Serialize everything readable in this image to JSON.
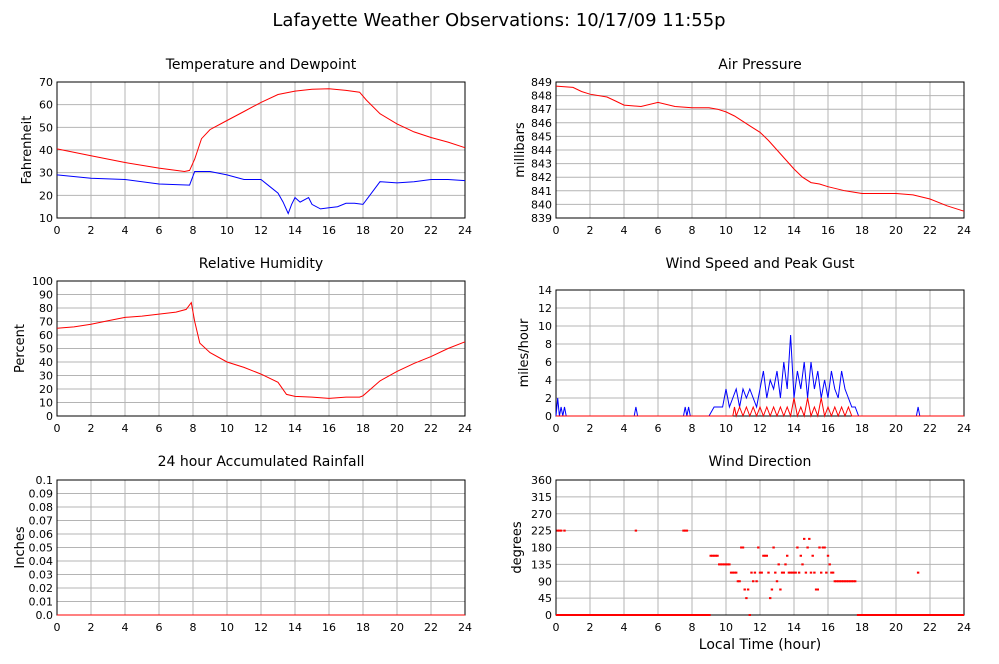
{
  "page": {
    "title": "Lafayette Weather Observations: 10/17/09 11:55p",
    "x_axis_label": "Local Time (hour)"
  },
  "colors": {
    "red": "#ff0000",
    "blue": "#0000ff",
    "grid": "#b4b4b4",
    "frame": "#000000"
  },
  "chart_data": [
    {
      "id": "temp",
      "type": "line",
      "title": "Temperature and Dewpoint",
      "xlabel": "",
      "ylabel": "Fahrenheit",
      "xlim": [
        0,
        24
      ],
      "ylim": [
        10,
        70
      ],
      "xticks": [
        0,
        2,
        4,
        6,
        8,
        10,
        12,
        14,
        16,
        18,
        20,
        22,
        24
      ],
      "yticks": [
        10,
        20,
        30,
        40,
        50,
        60,
        70
      ],
      "grid": true,
      "series": [
        {
          "color": "#ff0000",
          "x": [
            0,
            2,
            4,
            6,
            7.5,
            7.8,
            8.1,
            8.5,
            9,
            10,
            11,
            12,
            13,
            14,
            15,
            16,
            17,
            17.8,
            18.2,
            19,
            20,
            21,
            22,
            23,
            24
          ],
          "values": [
            40.5,
            37.5,
            34.5,
            32,
            30.5,
            31,
            36,
            45,
            49,
            53,
            57,
            61,
            64.5,
            66,
            66.8,
            67,
            66.3,
            65.5,
            62,
            56,
            51.5,
            48,
            45.5,
            43.5,
            41
          ]
        },
        {
          "color": "#0000ff",
          "x": [
            0,
            2,
            4,
            6,
            7.8,
            8.1,
            9,
            10,
            11,
            12,
            12.5,
            13,
            13.3,
            13.6,
            13.8,
            14,
            14.3,
            14.8,
            15,
            15.5,
            16,
            16.5,
            17,
            17.5,
            18,
            18.5,
            19,
            20,
            21,
            22,
            23,
            24
          ],
          "values": [
            29,
            27.5,
            27,
            25,
            24.5,
            30.5,
            30.5,
            29,
            27,
            27,
            24,
            21,
            17,
            12,
            16,
            19,
            17,
            19,
            16,
            14,
            14.5,
            15,
            16.5,
            16.5,
            16,
            21,
            26,
            25.5,
            26,
            27,
            27,
            26.5
          ]
        }
      ]
    },
    {
      "id": "pressure",
      "type": "line",
      "title": "Air Pressure",
      "xlabel": "",
      "ylabel": "millibars",
      "xlim": [
        0,
        24
      ],
      "ylim": [
        839,
        849
      ],
      "xticks": [
        0,
        2,
        4,
        6,
        8,
        10,
        12,
        14,
        16,
        18,
        20,
        22,
        24
      ],
      "yticks": [
        839,
        840,
        841,
        842,
        843,
        844,
        845,
        846,
        847,
        848,
        849
      ],
      "grid": true,
      "series": [
        {
          "color": "#ff0000",
          "x": [
            0,
            1,
            1.5,
            2,
            3,
            3.5,
            4,
            5,
            6,
            7,
            8,
            9,
            9.5,
            10,
            10.5,
            11,
            11.5,
            12,
            12.5,
            13,
            13.5,
            14,
            14.5,
            15,
            15.5,
            16,
            17,
            18,
            19,
            20,
            21,
            22,
            23,
            24
          ],
          "values": [
            848.7,
            848.6,
            848.3,
            848.1,
            847.9,
            847.6,
            847.3,
            847.2,
            847.5,
            847.2,
            847.1,
            847.1,
            847,
            846.8,
            846.5,
            846.1,
            845.7,
            845.3,
            844.7,
            844,
            843.3,
            842.6,
            842,
            841.6,
            841.5,
            841.3,
            841,
            840.8,
            840.8,
            840.8,
            840.7,
            840.4,
            839.9,
            839.5
          ]
        }
      ]
    },
    {
      "id": "humidity",
      "type": "line",
      "title": "Relative Humidity",
      "xlabel": "",
      "ylabel": "Percent",
      "xlim": [
        0,
        24
      ],
      "ylim": [
        0,
        100
      ],
      "xticks": [
        0,
        2,
        4,
        6,
        8,
        10,
        12,
        14,
        16,
        18,
        20,
        22,
        24
      ],
      "yticks": [
        0,
        10,
        20,
        30,
        40,
        50,
        60,
        70,
        80,
        90,
        100
      ],
      "grid": true,
      "series": [
        {
          "color": "#ff0000",
          "x": [
            0,
            1,
            2,
            3,
            4,
            5,
            6,
            7,
            7.6,
            7.9,
            8.1,
            8.4,
            9,
            10,
            11,
            12,
            13,
            13.5,
            14,
            15,
            16,
            17,
            17.8,
            18,
            19,
            20,
            21,
            22,
            23,
            24
          ],
          "values": [
            65,
            66,
            68,
            70.5,
            73,
            74,
            75.5,
            77,
            79,
            84,
            70,
            54,
            47,
            40,
            36,
            31,
            25,
            16,
            14.5,
            14,
            13,
            14,
            14,
            15,
            26,
            33,
            39,
            44,
            50,
            55
          ]
        }
      ]
    },
    {
      "id": "wind",
      "type": "line",
      "title": "Wind Speed and Peak Gust",
      "xlabel": "",
      "ylabel": "miles/hour",
      "xlim": [
        0,
        24
      ],
      "ylim": [
        0,
        14
      ],
      "xticks": [
        0,
        2,
        4,
        6,
        8,
        10,
        12,
        14,
        16,
        18,
        20,
        22,
        24
      ],
      "yticks": [
        0,
        2,
        4,
        6,
        8,
        10,
        12,
        14
      ],
      "grid": true,
      "series": [
        {
          "color": "#0000ff",
          "x": [
            0,
            0.1,
            0.2,
            0.3,
            0.4,
            0.5,
            0.6,
            0.7,
            4.6,
            4.7,
            4.8,
            7.5,
            7.6,
            7.7,
            7.8,
            7.9,
            8,
            9,
            9.3,
            9.6,
            9.8,
            10,
            10.2,
            10.4,
            10.6,
            10.8,
            11,
            11.2,
            11.4,
            11.6,
            11.8,
            12,
            12.2,
            12.4,
            12.6,
            12.8,
            13,
            13.2,
            13.4,
            13.6,
            13.8,
            14,
            14.2,
            14.4,
            14.6,
            14.8,
            15,
            15.2,
            15.4,
            15.6,
            15.8,
            16,
            16.2,
            16.4,
            16.6,
            16.8,
            17,
            17.2,
            17.4,
            17.6,
            17.8,
            18,
            21.2,
            21.3,
            21.4,
            24
          ],
          "values": [
            0,
            2,
            0,
            1,
            0,
            1,
            0,
            0,
            0,
            1,
            0,
            0,
            1,
            0,
            1,
            0,
            0,
            0,
            1,
            1,
            1,
            3,
            1,
            2,
            3,
            1,
            3,
            2,
            3,
            2,
            1,
            3,
            5,
            2,
            4,
            3,
            5,
            2,
            6,
            3,
            9,
            2,
            5,
            3,
            6,
            2,
            6,
            3,
            5,
            2,
            4,
            2,
            5,
            3,
            2,
            5,
            3,
            2,
            1,
            1,
            0,
            0,
            0,
            1,
            0,
            0
          ]
        },
        {
          "color": "#ff0000",
          "x": [
            0,
            10.4,
            10.5,
            10.6,
            10.8,
            11,
            11.2,
            11.4,
            11.6,
            11.8,
            12,
            12.2,
            12.4,
            12.6,
            12.8,
            13,
            13.2,
            13.4,
            13.6,
            13.8,
            14,
            14.2,
            14.4,
            14.6,
            14.8,
            15,
            15.2,
            15.4,
            15.6,
            15.8,
            16,
            16.2,
            16.4,
            16.6,
            16.8,
            17,
            17.2,
            17.4,
            24
          ],
          "values": [
            0,
            0,
            1,
            0,
            1,
            0,
            1,
            0,
            1,
            0,
            1,
            0,
            1,
            0,
            1,
            0,
            1,
            0,
            1,
            0,
            2,
            0,
            1,
            0,
            2,
            0,
            1,
            0,
            2,
            0,
            1,
            0,
            1,
            0,
            1,
            0,
            1,
            0,
            0
          ]
        }
      ]
    },
    {
      "id": "rain",
      "type": "line",
      "title": "24 hour Accumulated Rainfall",
      "xlabel": "",
      "ylabel": "Inches",
      "xlim": [
        0,
        24
      ],
      "ylim": [
        0,
        0.1
      ],
      "xticks": [
        0,
        2,
        4,
        6,
        8,
        10,
        12,
        14,
        16,
        18,
        20,
        22,
        24
      ],
      "yticks": [
        "0.0",
        "0.01",
        "0.02",
        "0.03",
        "0.04",
        "0.05",
        "0.06",
        "0.07",
        "0.08",
        "0.09",
        "0.1"
      ],
      "grid": true,
      "series": [
        {
          "color": "#ff0000",
          "x": [
            0,
            24
          ],
          "values": [
            0,
            0
          ]
        }
      ]
    },
    {
      "id": "direction",
      "type": "scatter",
      "title": "Wind Direction",
      "xlabel": "Local Time (hour)",
      "ylabel": "degrees",
      "xlim": [
        0,
        24
      ],
      "ylim": [
        0,
        360
      ],
      "xticks": [
        0,
        2,
        4,
        6,
        8,
        10,
        12,
        14,
        16,
        18,
        20,
        22,
        24
      ],
      "yticks": [
        0,
        45,
        90,
        135,
        180,
        225,
        270,
        315,
        360
      ],
      "grid": true,
      "series": [
        {
          "color": "#ff0000",
          "x": [
            0.1,
            0.2,
            0.3,
            0.5,
            4.7,
            7.5,
            7.6,
            7.7,
            9.1,
            9.2,
            9.3,
            9.4,
            9.5,
            9.6,
            9.7,
            9.8,
            9.9,
            10,
            10.1,
            10.2,
            10.3,
            10.4,
            10.5,
            10.6,
            10.7,
            10.8,
            10.9,
            11,
            11.1,
            11.2,
            11.3,
            11.4,
            11.5,
            11.6,
            11.7,
            11.8,
            11.9,
            12,
            12.1,
            12.2,
            12.3,
            12.4,
            12.5,
            12.6,
            12.7,
            12.8,
            12.9,
            13,
            13.1,
            13.2,
            13.3,
            13.4,
            13.5,
            13.6,
            13.7,
            13.8,
            13.9,
            14,
            14.1,
            14.2,
            14.3,
            14.4,
            14.5,
            14.6,
            14.7,
            14.8,
            14.9,
            15,
            15.1,
            15.2,
            15.3,
            15.4,
            15.5,
            15.6,
            15.7,
            15.8,
            15.9,
            16,
            16.1,
            16.2,
            16.3,
            16.4,
            16.5,
            16.6,
            16.7,
            16.8,
            16.9,
            17,
            17.1,
            17.2,
            17.3,
            17.4,
            17.5,
            17.6,
            21.3
          ],
          "values": [
            225,
            225,
            225,
            225,
            225,
            225,
            225,
            225,
            158,
            158,
            158,
            158,
            158,
            135,
            135,
            135,
            135,
            135,
            135,
            135,
            113,
            113,
            113,
            113,
            90,
            90,
            180,
            180,
            68,
            45,
            68,
            0,
            113,
            90,
            113,
            90,
            180,
            113,
            113,
            158,
            158,
            158,
            113,
            45,
            68,
            180,
            113,
            90,
            135,
            68,
            113,
            113,
            135,
            158,
            113,
            113,
            113,
            113,
            113,
            180,
            113,
            158,
            135,
            203,
            113,
            180,
            203,
            113,
            158,
            113,
            68,
            68,
            180,
            113,
            180,
            180,
            113,
            158,
            135,
            113,
            113,
            90,
            90,
            90,
            90,
            90,
            90,
            90,
            90,
            90,
            90,
            90,
            90,
            90,
            113
          ],
          "zeros": [
            [
              0,
              9.1
            ],
            [
              17.7,
              24
            ]
          ]
        }
      ]
    }
  ]
}
